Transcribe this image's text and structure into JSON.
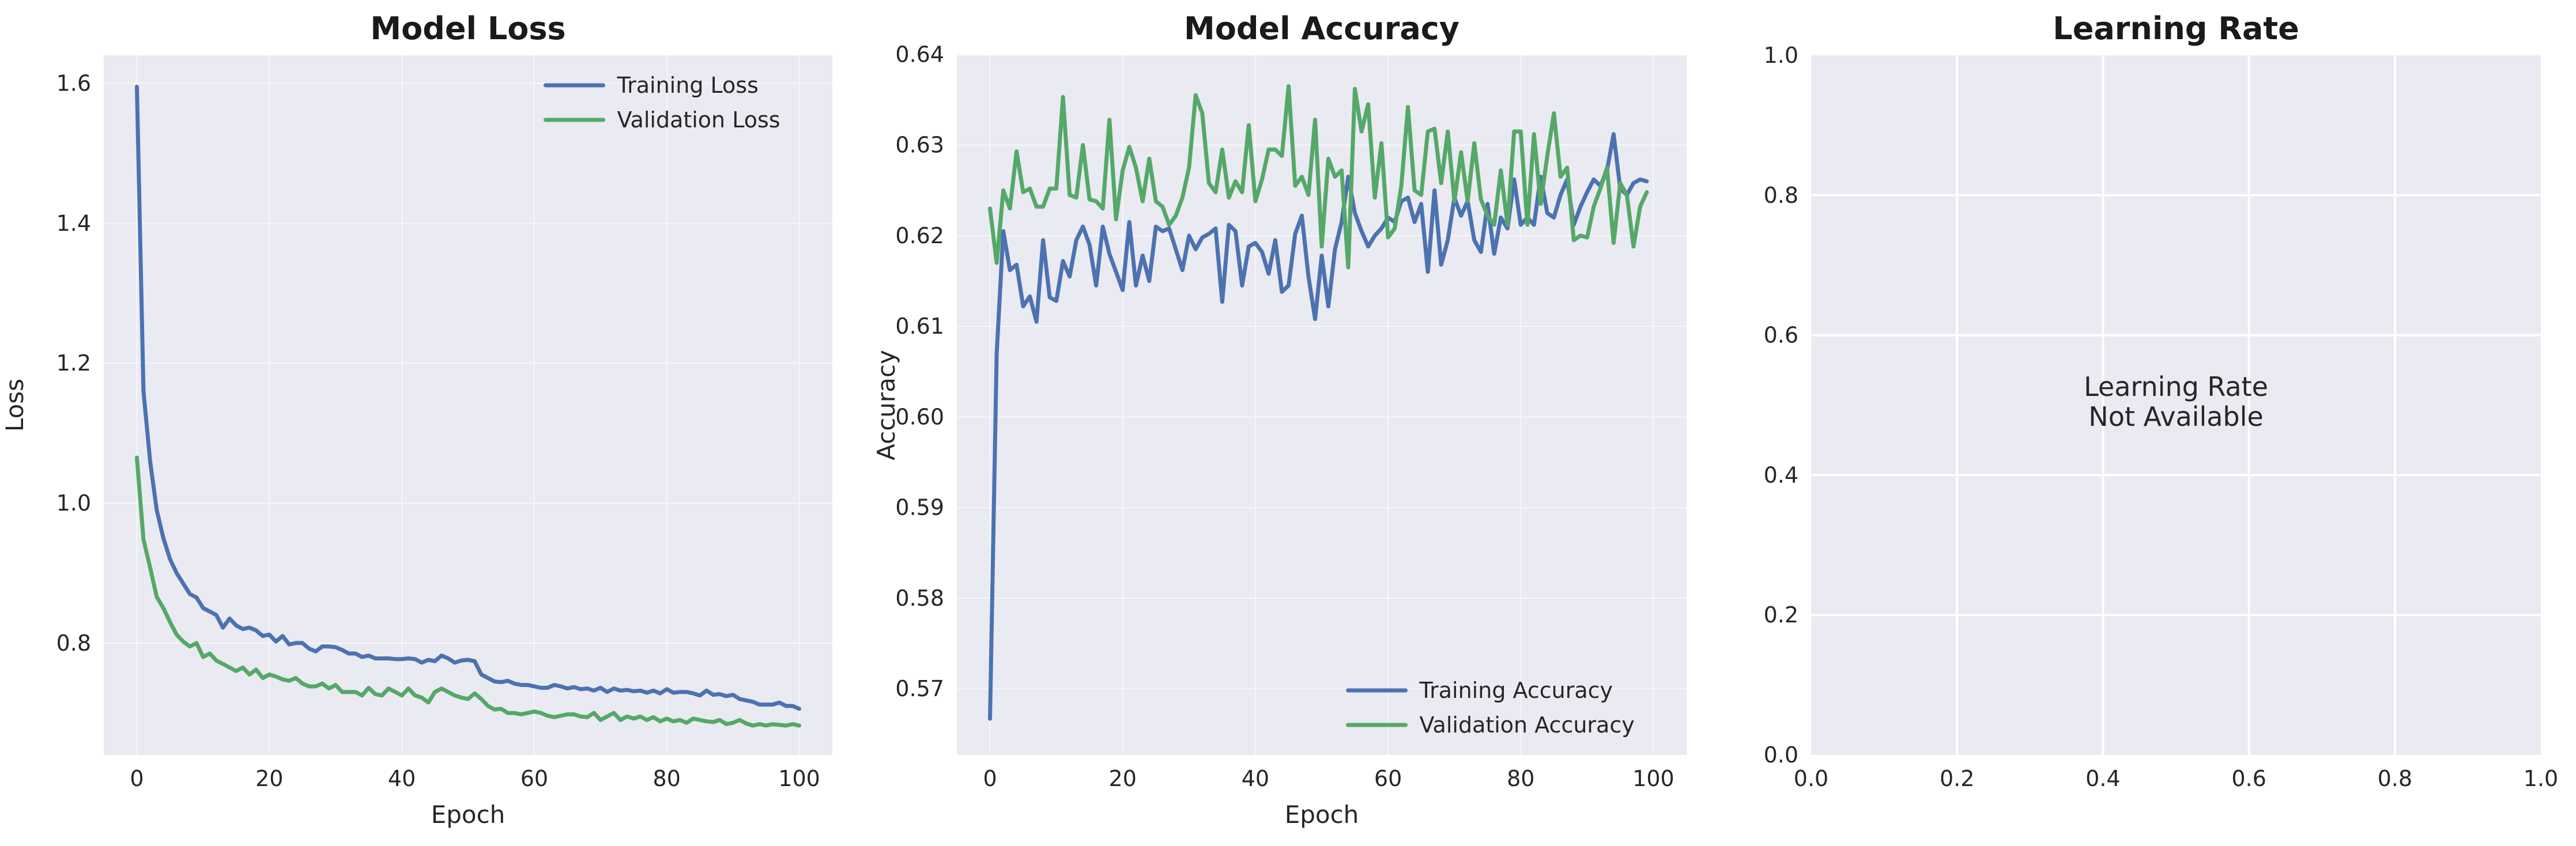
{
  "colors": {
    "axes_bg": "#EAEAF2",
    "grid": "#FFFFFF",
    "training": "#4C72B0",
    "validation": "#55A868"
  },
  "chart_data": [
    {
      "type": "line",
      "title": "Model Loss",
      "xlabel": "Epoch",
      "ylabel": "Loss",
      "xlim": [
        -5,
        105
      ],
      "ylim": [
        0.64,
        1.64
      ],
      "xticks": [
        0,
        20,
        40,
        60,
        80,
        100
      ],
      "yticks": [
        0.8,
        1.0,
        1.2,
        1.4,
        1.6
      ],
      "grid": true,
      "legend": "top-right",
      "series": [
        {
          "name": "Training Loss",
          "color": "#4C72B0",
          "x_start": 0,
          "values": [
            1.595,
            1.16,
            1.06,
            0.99,
            0.95,
            0.92,
            0.9,
            0.885,
            0.87,
            0.865,
            0.85,
            0.845,
            0.84,
            0.822,
            0.835,
            0.825,
            0.82,
            0.822,
            0.818,
            0.81,
            0.812,
            0.802,
            0.81,
            0.798,
            0.8,
            0.8,
            0.792,
            0.788,
            0.795,
            0.795,
            0.794,
            0.79,
            0.785,
            0.785,
            0.78,
            0.782,
            0.778,
            0.778,
            0.778,
            0.777,
            0.777,
            0.778,
            0.777,
            0.772,
            0.776,
            0.774,
            0.782,
            0.778,
            0.772,
            0.775,
            0.776,
            0.774,
            0.755,
            0.75,
            0.745,
            0.744,
            0.746,
            0.742,
            0.74,
            0.74,
            0.738,
            0.736,
            0.736,
            0.74,
            0.738,
            0.735,
            0.737,
            0.734,
            0.735,
            0.732,
            0.736,
            0.73,
            0.735,
            0.732,
            0.733,
            0.731,
            0.732,
            0.729,
            0.732,
            0.728,
            0.734,
            0.729,
            0.73,
            0.73,
            0.728,
            0.725,
            0.732,
            0.726,
            0.727,
            0.724,
            0.726,
            0.72,
            0.718,
            0.716,
            0.712,
            0.712,
            0.712,
            0.715,
            0.71,
            0.71,
            0.706
          ]
        },
        {
          "name": "Validation Loss",
          "color": "#55A868",
          "x_start": 0,
          "values": [
            1.065,
            0.948,
            0.908,
            0.866,
            0.85,
            0.83,
            0.812,
            0.802,
            0.795,
            0.8,
            0.78,
            0.785,
            0.775,
            0.77,
            0.765,
            0.76,
            0.765,
            0.755,
            0.762,
            0.75,
            0.755,
            0.752,
            0.748,
            0.746,
            0.75,
            0.742,
            0.738,
            0.738,
            0.742,
            0.735,
            0.74,
            0.73,
            0.73,
            0.73,
            0.725,
            0.736,
            0.727,
            0.725,
            0.735,
            0.73,
            0.725,
            0.735,
            0.725,
            0.722,
            0.715,
            0.73,
            0.735,
            0.73,
            0.725,
            0.722,
            0.72,
            0.728,
            0.72,
            0.71,
            0.705,
            0.706,
            0.7,
            0.7,
            0.698,
            0.7,
            0.702,
            0.7,
            0.696,
            0.694,
            0.696,
            0.698,
            0.698,
            0.695,
            0.694,
            0.7,
            0.69,
            0.695,
            0.7,
            0.69,
            0.695,
            0.692,
            0.695,
            0.69,
            0.694,
            0.688,
            0.692,
            0.688,
            0.69,
            0.686,
            0.692,
            0.69,
            0.688,
            0.687,
            0.69,
            0.684,
            0.686,
            0.69,
            0.685,
            0.682,
            0.684,
            0.682,
            0.684,
            0.683,
            0.682,
            0.684,
            0.682
          ]
        }
      ]
    },
    {
      "type": "line",
      "title": "Model Accuracy",
      "xlabel": "Epoch",
      "ylabel": "Accuracy",
      "xlim": [
        -5,
        105
      ],
      "ylim": [
        0.5627,
        0.6399
      ],
      "xticks": [
        0,
        20,
        40,
        60,
        80,
        100
      ],
      "yticks": [
        0.57,
        0.58,
        0.59,
        0.6,
        0.61,
        0.62,
        0.63,
        0.64
      ],
      "grid": true,
      "legend": "bottom-right",
      "series": [
        {
          "name": "Training Accuracy",
          "color": "#4C72B0",
          "x_start": 0,
          "values": [
            0.5667,
            0.607,
            0.6205,
            0.6162,
            0.6168,
            0.6122,
            0.6133,
            0.6105,
            0.6195,
            0.6132,
            0.6128,
            0.6172,
            0.6155,
            0.6195,
            0.621,
            0.619,
            0.6145,
            0.621,
            0.618,
            0.616,
            0.614,
            0.6215,
            0.6145,
            0.6178,
            0.615,
            0.621,
            0.6205,
            0.6208,
            0.6185,
            0.6162,
            0.62,
            0.6185,
            0.6198,
            0.6202,
            0.6208,
            0.6127,
            0.6212,
            0.6205,
            0.6145,
            0.6188,
            0.6192,
            0.6182,
            0.6158,
            0.6195,
            0.6138,
            0.6145,
            0.6202,
            0.6222,
            0.6155,
            0.6108,
            0.6178,
            0.6122,
            0.6185,
            0.6215,
            0.6265,
            0.6225,
            0.6205,
            0.6188,
            0.62,
            0.6208,
            0.622,
            0.6215,
            0.6238,
            0.6242,
            0.6215,
            0.6235,
            0.616,
            0.625,
            0.6168,
            0.6195,
            0.6242,
            0.6222,
            0.6238,
            0.6195,
            0.6182,
            0.6235,
            0.618,
            0.622,
            0.6208,
            0.6262,
            0.6212,
            0.622,
            0.6212,
            0.6265,
            0.6225,
            0.622,
            0.6245,
            0.6262,
            0.6212,
            0.6232,
            0.6248,
            0.6262,
            0.6255,
            0.6272,
            0.6312,
            0.6252,
            0.6245,
            0.6258,
            0.6262,
            0.626
          ]
        },
        {
          "name": "Validation Accuracy",
          "color": "#55A868",
          "x_start": 0,
          "values": [
            0.623,
            0.617,
            0.625,
            0.623,
            0.6293,
            0.6248,
            0.6252,
            0.6232,
            0.6232,
            0.6252,
            0.6252,
            0.6353,
            0.6245,
            0.6242,
            0.63,
            0.624,
            0.6238,
            0.623,
            0.6328,
            0.6218,
            0.6272,
            0.6298,
            0.6275,
            0.6238,
            0.6285,
            0.6238,
            0.6232,
            0.6212,
            0.6222,
            0.6242,
            0.6275,
            0.6355,
            0.6335,
            0.6258,
            0.6248,
            0.6295,
            0.6242,
            0.626,
            0.6248,
            0.6322,
            0.6238,
            0.6262,
            0.6295,
            0.6295,
            0.6288,
            0.6365,
            0.6255,
            0.6265,
            0.6245,
            0.6328,
            0.6188,
            0.6285,
            0.6265,
            0.6272,
            0.6165,
            0.6362,
            0.6315,
            0.6345,
            0.6242,
            0.6302,
            0.6198,
            0.6208,
            0.6255,
            0.6342,
            0.625,
            0.6245,
            0.6315,
            0.6318,
            0.6258,
            0.6315,
            0.6238,
            0.6292,
            0.6238,
            0.6302,
            0.624,
            0.6222,
            0.6212,
            0.6272,
            0.6212,
            0.6315,
            0.6315,
            0.6212,
            0.6312,
            0.6235,
            0.6288,
            0.6335,
            0.6265,
            0.6275,
            0.6195,
            0.62,
            0.6198,
            0.6232,
            0.6252,
            0.6275,
            0.6192,
            0.6258,
            0.6245,
            0.6188,
            0.6232,
            0.6248
          ]
        }
      ]
    },
    {
      "type": "line",
      "title": "Learning Rate",
      "xlabel": "",
      "ylabel": "",
      "xlim": [
        0,
        1
      ],
      "ylim": [
        0,
        1
      ],
      "xticks": [
        0.0,
        0.2,
        0.4,
        0.6,
        0.8,
        1.0
      ],
      "yticks": [
        0.0,
        0.2,
        0.4,
        0.6,
        0.8,
        1.0
      ],
      "grid": true,
      "annotation_lines": [
        "Learning Rate",
        "Not Available"
      ],
      "series": []
    }
  ]
}
